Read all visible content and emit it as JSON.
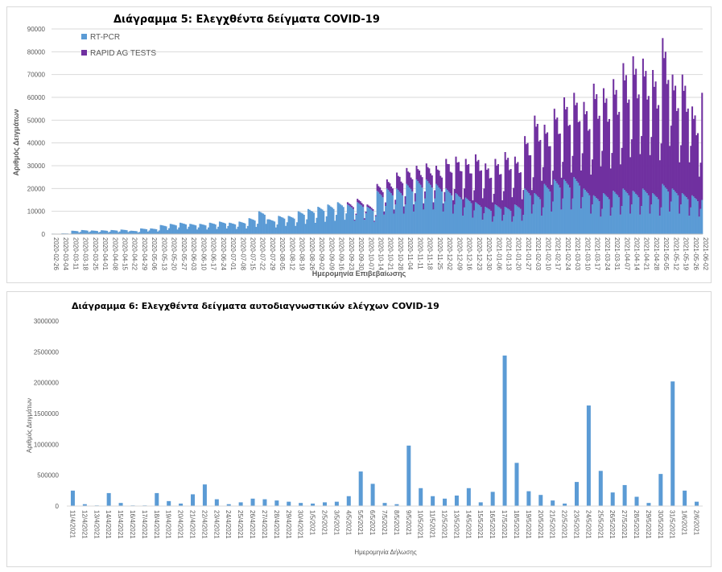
{
  "colors": {
    "rtpcr": "#5b9bd5",
    "rapid": "#7030a0",
    "grid": "#d9d9d9"
  },
  "chart_data": [
    {
      "type": "bar",
      "stacked": true,
      "title": "Διάγραμμα 5: Ελεγχθέντα δείγματα COVID-19",
      "xlabel": "Ημερομηνία Επιβεβαίωσης",
      "ylabel": "Αριθμός Δειγμάτων",
      "ylim": [
        0,
        90000
      ],
      "yticks": [
        0,
        10000,
        20000,
        30000,
        40000,
        50000,
        60000,
        70000,
        80000,
        90000
      ],
      "legend_position": "top-left",
      "grid": true,
      "note": "weekly approximate values; RT-PCR typical daily level and combined daily peak",
      "categories": [
        "2020-02-26",
        "2020-03-04",
        "2020-03-11",
        "2020-03-18",
        "2020-03-25",
        "2020-04-01",
        "2020-04-08",
        "2020-04-15",
        "2020-04-22",
        "2020-04-29",
        "2020-05-06",
        "2020-05-13",
        "2020-05-20",
        "2020-05-27",
        "2020-06-03",
        "2020-06-10",
        "2020-06-17",
        "2020-06-24",
        "2020-07-01",
        "2020-07-08",
        "2020-07-15",
        "2020-07-22",
        "2020-07-29",
        "2020-08-05",
        "2020-08-12",
        "2020-08-19",
        "2020-08-26",
        "2020-09-02",
        "2020-09-09",
        "2020-09-16",
        "2020-09-23",
        "2020-09-30",
        "2020-10-07",
        "2020-10-14",
        "2020-10-21",
        "2020-10-28",
        "2020-11-04",
        "2020-11-11",
        "2020-11-18",
        "2020-11-25",
        "2020-12-02",
        "2020-12-09",
        "2020-12-16",
        "2020-12-23",
        "2020-12-30",
        "2021-01-06",
        "2021-01-13",
        "2021-01-20",
        "2021-01-27",
        "2021-02-03",
        "2021-02-10",
        "2021-02-17",
        "2021-02-24",
        "2021-03-03",
        "2021-03-10",
        "2021-03-17",
        "2021-03-24",
        "2021-03-31",
        "2021-04-07",
        "2021-04-14",
        "2021-04-21",
        "2021-04-28",
        "2021-05-05",
        "2021-05-12",
        "2021-05-19",
        "2021-05-26",
        "2021-06-02"
      ],
      "series": [
        {
          "name": "RT-PCR",
          "values": [
            200,
            300,
            1500,
            1800,
            1600,
            1700,
            1800,
            2000,
            1500,
            2500,
            2500,
            4000,
            4500,
            5000,
            4500,
            4500,
            5000,
            5500,
            5000,
            5500,
            7000,
            10000,
            6500,
            8000,
            8000,
            10000,
            11000,
            12000,
            13000,
            14000,
            13000,
            14000,
            12000,
            19000,
            20000,
            20000,
            22000,
            24000,
            24000,
            22000,
            20000,
            18000,
            16000,
            14000,
            12000,
            13000,
            12000,
            13000,
            20000,
            18000,
            22000,
            24000,
            24000,
            25000,
            20000,
            17000,
            18000,
            19000,
            20000,
            19000,
            20000,
            18000,
            22000,
            20000,
            18000,
            17000,
            15000
          ]
        },
        {
          "name": "RAPID AG TESTS",
          "values": [
            0,
            0,
            0,
            0,
            0,
            0,
            0,
            0,
            0,
            0,
            0,
            0,
            0,
            0,
            0,
            0,
            0,
            0,
            0,
            0,
            0,
            0,
            0,
            0,
            0,
            0,
            0,
            0,
            0,
            0,
            1000,
            1500,
            1000,
            3000,
            4000,
            7000,
            7000,
            6000,
            7000,
            8000,
            13000,
            16000,
            17000,
            21000,
            19000,
            20000,
            24000,
            21000,
            23000,
            34000,
            26000,
            31000,
            36000,
            37000,
            38000,
            49000,
            46000,
            49000,
            55000,
            59000,
            57000,
            54000,
            64000,
            50000,
            52000,
            39000,
            47000
          ]
        }
      ]
    },
    {
      "type": "bar",
      "title": "Διάγραμμα 6: Ελεγχθέντα δείγματα αυτοδιαγνωστικών ελέγχων COVID-19",
      "xlabel": "Ημερομηνία Δήλωσης",
      "ylabel": "Αριθμός Δειγμάτων",
      "ylim": [
        0,
        3000000
      ],
      "yticks": [
        0,
        500000,
        1000000,
        1500000,
        2000000,
        2500000,
        3000000
      ],
      "grid": false,
      "categories": [
        "11/4/2021",
        "12/4/2021",
        "13/4/2021",
        "14/4/2021",
        "15/4/2021",
        "16/4/2021",
        "17/4/2021",
        "18/4/2021",
        "19/4/2021",
        "20/4/2021",
        "21/4/2021",
        "22/4/2021",
        "23/4/2021",
        "24/4/2021",
        "25/4/2021",
        "26/4/2021",
        "27/4/2021",
        "28/4/2021",
        "29/4/2021",
        "30/4/2021",
        "1/5/2021",
        "2/5/2021",
        "3/5/2021",
        "4/5/2021",
        "5/5/2021",
        "6/5/2021",
        "7/5/2021",
        "8/5/2021",
        "9/5/2021",
        "10/5/2021",
        "11/5/2021",
        "12/5/2021",
        "13/5/2021",
        "14/5/2021",
        "15/5/2021",
        "16/5/2021",
        "17/5/2021",
        "18/5/2021",
        "19/5/2021",
        "20/5/2021",
        "21/5/2021",
        "22/5/2021",
        "23/5/2021",
        "24/5/2021",
        "25/5/2021",
        "26/5/2021",
        "27/5/2021",
        "28/5/2021",
        "29/5/2021",
        "30/5/2021",
        "31/5/2021",
        "1/6/2021",
        "2/6/2021"
      ],
      "values": [
        250000,
        30000,
        10000,
        210000,
        50000,
        10000,
        10000,
        210000,
        80000,
        40000,
        190000,
        350000,
        110000,
        30000,
        60000,
        120000,
        110000,
        90000,
        70000,
        50000,
        40000,
        60000,
        70000,
        160000,
        560000,
        360000,
        50000,
        30000,
        980000,
        290000,
        160000,
        120000,
        170000,
        290000,
        60000,
        230000,
        2440000,
        700000,
        240000,
        180000,
        90000,
        40000,
        390000,
        1630000,
        570000,
        220000,
        340000,
        150000,
        50000,
        520000,
        2020000,
        250000,
        70000
      ]
    }
  ]
}
